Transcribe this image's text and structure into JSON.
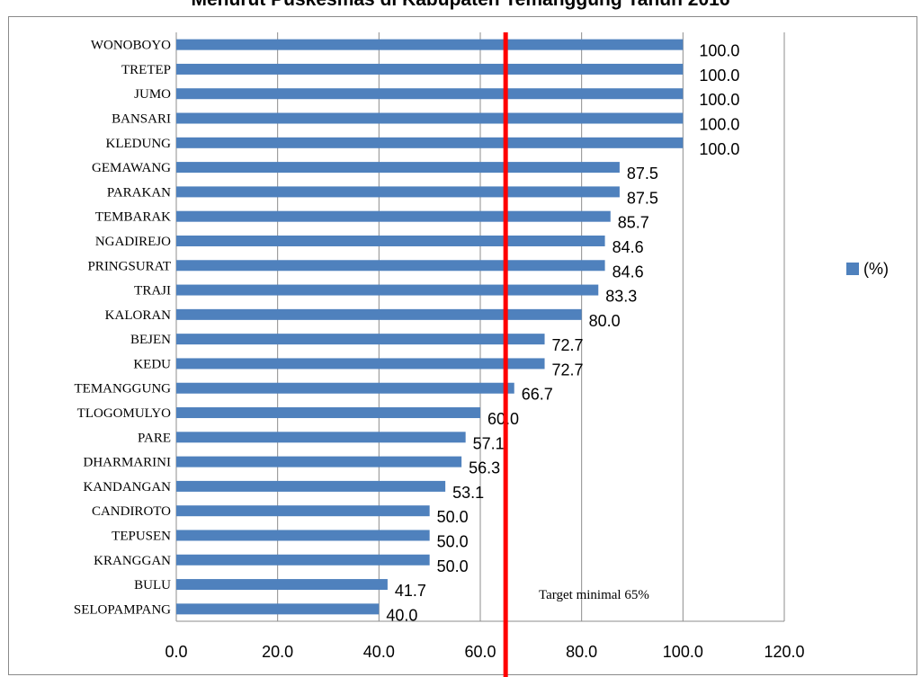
{
  "chart_data": {
    "type": "bar",
    "orientation": "horizontal",
    "title": "Menurut Puskesmas di Kabupaten Temanggung Tahun 2016",
    "categories": [
      "WONOBOYO",
      "TRETEP",
      "JUMO",
      "BANSARI",
      "KLEDUNG",
      "GEMAWANG",
      "PARAKAN",
      "TEMBARAK",
      "NGADIREJO",
      "PRINGSURAT",
      "TRAJI",
      "KALORAN",
      "BEJEN",
      "KEDU",
      "TEMANGGUNG",
      "TLOGOMULYO",
      "PARE",
      "DHARMARINI",
      "KANDANGAN",
      "CANDIROTO",
      "TEPUSEN",
      "KRANGGAN",
      "BULU",
      "SELOPAMPANG"
    ],
    "series": [
      {
        "name": "(%)",
        "values": [
          100.0,
          100.0,
          100.0,
          100.0,
          100.0,
          87.5,
          87.5,
          85.7,
          84.6,
          84.6,
          83.3,
          80.0,
          72.7,
          72.7,
          66.7,
          60.0,
          57.1,
          56.3,
          53.1,
          50.0,
          50.0,
          50.0,
          41.7,
          40.0
        ],
        "labels": [
          "100.0",
          "100.0",
          "100.0",
          "100.0",
          "100.0",
          "87.5",
          "87.5",
          "85.7",
          "84.6",
          "84.6",
          "83.3",
          "80.0",
          "72.7",
          "72.7",
          "66.7",
          "60.0",
          "57.1",
          "56.3",
          "53.1",
          "50.0",
          "50.0",
          "50.0",
          "41.7",
          "40.0"
        ],
        "color": "#4f81bd"
      }
    ],
    "xlim": [
      0,
      120
    ],
    "xticks": [
      0,
      20,
      40,
      60,
      80,
      100,
      120
    ],
    "xtick_labels": [
      "0.0",
      "20.0",
      "40.0",
      "60.0",
      "80.0",
      "100.0",
      "120.0"
    ],
    "grid": "vertical",
    "legend": "right",
    "target": {
      "value": 65,
      "color": "#ff0000",
      "label": "Target minimal 65%"
    }
  }
}
